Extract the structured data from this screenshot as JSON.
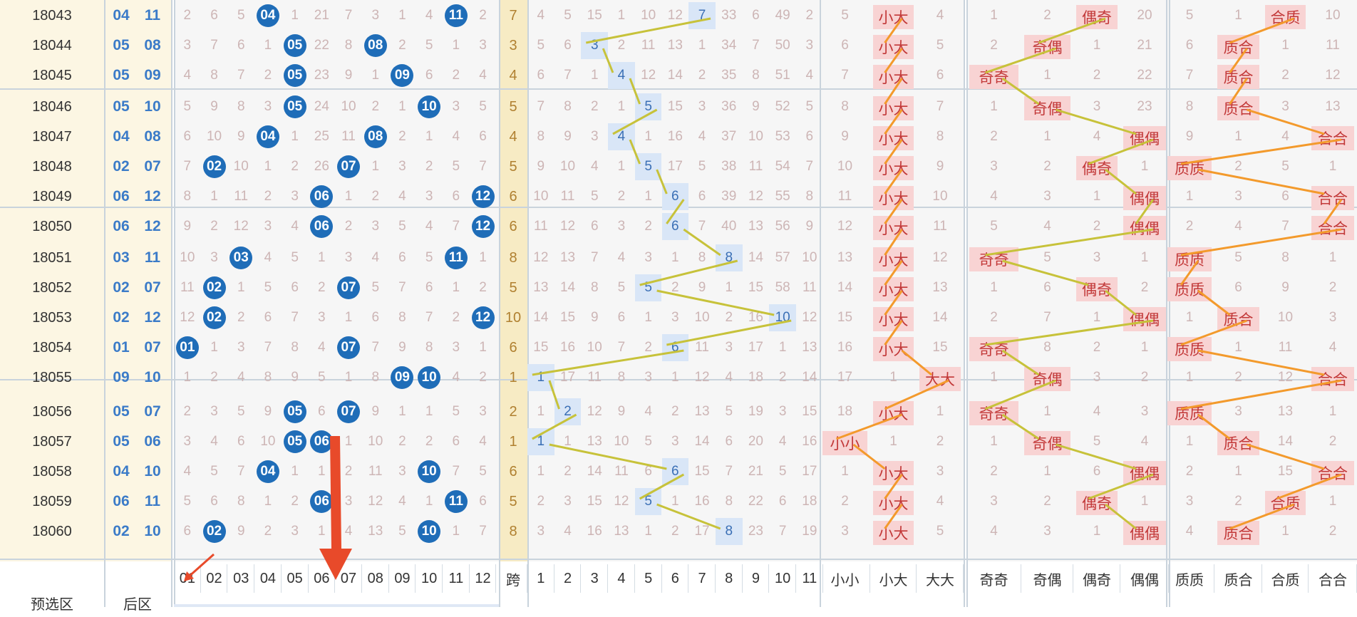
{
  "columns": {
    "front_numbers": [
      "01",
      "02",
      "03",
      "04",
      "05",
      "06",
      "07",
      "08",
      "09",
      "10",
      "11",
      "12"
    ],
    "span_label": "跨",
    "span_values": [
      "1",
      "2",
      "3",
      "4",
      "5",
      "6",
      "7",
      "8",
      "9",
      "10",
      "11"
    ],
    "size_patterns": [
      "小小",
      "小大",
      "大大"
    ],
    "parity_patterns": [
      "奇奇",
      "奇偶",
      "偶奇",
      "偶偶"
    ],
    "prime_patterns": [
      "质质",
      "质合",
      "合质",
      "合合"
    ]
  },
  "footer": {
    "zone_label": "预选区",
    "back_label": "后区"
  },
  "colors": {
    "ball": "#1f6db8",
    "span_highlight": "#f7ebc4",
    "hit_highlight": "#d9e6f7",
    "pattern_highlight": "#f8d3d3",
    "trend_yellow": "#c7c23a",
    "trend_orange": "#f39a2c",
    "arrow": "#e84a2a"
  },
  "rows": [
    {
      "issue": "18043",
      "back": [
        "04",
        "11"
      ],
      "front": [
        "2",
        "6",
        "5",
        "04",
        "1",
        "21",
        "7",
        "3",
        "1",
        "4",
        "11",
        "2"
      ],
      "span": "7",
      "spans": [
        "4",
        "5",
        "15",
        "1",
        "10",
        "12",
        "7",
        "33",
        "6",
        "49",
        "2"
      ],
      "size": [
        "5",
        "小大",
        "4"
      ],
      "parity": [
        "1",
        "2",
        "偶奇",
        "20"
      ],
      "prime": [
        "5",
        "1",
        "合质",
        "10"
      ]
    },
    {
      "issue": "18044",
      "back": [
        "05",
        "08"
      ],
      "front": [
        "3",
        "7",
        "6",
        "1",
        "05",
        "22",
        "8",
        "08",
        "2",
        "5",
        "1",
        "3"
      ],
      "span": "3",
      "spans": [
        "5",
        "6",
        "3",
        "2",
        "11",
        "13",
        "1",
        "34",
        "7",
        "50",
        "3"
      ],
      "size": [
        "6",
        "小大",
        "5"
      ],
      "parity": [
        "2",
        "奇偶",
        "1",
        "21"
      ],
      "prime": [
        "6",
        "质合",
        "1",
        "11"
      ]
    },
    {
      "issue": "18045",
      "back": [
        "05",
        "09"
      ],
      "front": [
        "4",
        "8",
        "7",
        "2",
        "05",
        "23",
        "9",
        "1",
        "09",
        "6",
        "2",
        "4"
      ],
      "span": "4",
      "spans": [
        "6",
        "7",
        "1",
        "4",
        "12",
        "14",
        "2",
        "35",
        "8",
        "51",
        "4"
      ],
      "size": [
        "7",
        "小大",
        "6"
      ],
      "parity": [
        "奇奇",
        "1",
        "2",
        "22"
      ],
      "prime": [
        "7",
        "质合",
        "2",
        "12"
      ]
    },
    {
      "issue": "18046",
      "back": [
        "05",
        "10"
      ],
      "front": [
        "5",
        "9",
        "8",
        "3",
        "05",
        "24",
        "10",
        "2",
        "1",
        "10",
        "3",
        "5"
      ],
      "span": "5",
      "spans": [
        "7",
        "8",
        "2",
        "1",
        "5",
        "15",
        "3",
        "36",
        "9",
        "52",
        "5"
      ],
      "size": [
        "8",
        "小大",
        "7"
      ],
      "parity": [
        "1",
        "奇偶",
        "3",
        "23"
      ],
      "prime": [
        "8",
        "质合",
        "3",
        "13"
      ]
    },
    {
      "issue": "18047",
      "back": [
        "04",
        "08"
      ],
      "front": [
        "6",
        "10",
        "9",
        "04",
        "1",
        "25",
        "11",
        "08",
        "2",
        "1",
        "4",
        "6"
      ],
      "span": "4",
      "spans": [
        "8",
        "9",
        "3",
        "4",
        "1",
        "16",
        "4",
        "37",
        "10",
        "53",
        "6"
      ],
      "size": [
        "9",
        "小大",
        "8"
      ],
      "parity": [
        "2",
        "1",
        "4",
        "偶偶"
      ],
      "prime": [
        "9",
        "1",
        "4",
        "合合"
      ]
    },
    {
      "issue": "18048",
      "back": [
        "02",
        "07"
      ],
      "front": [
        "7",
        "02",
        "10",
        "1",
        "2",
        "26",
        "07",
        "1",
        "3",
        "2",
        "5",
        "7"
      ],
      "span": "5",
      "spans": [
        "9",
        "10",
        "4",
        "1",
        "5",
        "17",
        "5",
        "38",
        "11",
        "54",
        "7"
      ],
      "size": [
        "10",
        "小大",
        "9"
      ],
      "parity": [
        "3",
        "2",
        "偶奇",
        "1"
      ],
      "prime": [
        "质质",
        "2",
        "5",
        "1"
      ]
    },
    {
      "issue": "18049",
      "back": [
        "06",
        "12"
      ],
      "front": [
        "8",
        "1",
        "11",
        "2",
        "3",
        "06",
        "1",
        "2",
        "4",
        "3",
        "6",
        "12"
      ],
      "span": "6",
      "spans": [
        "10",
        "11",
        "5",
        "2",
        "1",
        "6",
        "6",
        "39",
        "12",
        "55",
        "8"
      ],
      "size": [
        "11",
        "小大",
        "10"
      ],
      "parity": [
        "4",
        "3",
        "1",
        "偶偶"
      ],
      "prime": [
        "1",
        "3",
        "6",
        "合合"
      ]
    },
    {
      "issue": "18050",
      "back": [
        "06",
        "12"
      ],
      "front": [
        "9",
        "2",
        "12",
        "3",
        "4",
        "06",
        "2",
        "3",
        "5",
        "4",
        "7",
        "12"
      ],
      "span": "6",
      "spans": [
        "11",
        "12",
        "6",
        "3",
        "2",
        "6",
        "7",
        "40",
        "13",
        "56",
        "9"
      ],
      "size": [
        "12",
        "小大",
        "11"
      ],
      "parity": [
        "5",
        "4",
        "2",
        "偶偶"
      ],
      "prime": [
        "2",
        "4",
        "7",
        "合合"
      ]
    },
    {
      "issue": "18051",
      "back": [
        "03",
        "11"
      ],
      "front": [
        "10",
        "3",
        "03",
        "4",
        "5",
        "1",
        "3",
        "4",
        "6",
        "5",
        "11",
        "1"
      ],
      "span": "8",
      "spans": [
        "12",
        "13",
        "7",
        "4",
        "3",
        "1",
        "8",
        "8",
        "14",
        "57",
        "10"
      ],
      "size": [
        "13",
        "小大",
        "12"
      ],
      "parity": [
        "奇奇",
        "5",
        "3",
        "1"
      ],
      "prime": [
        "质质",
        "5",
        "8",
        "1"
      ]
    },
    {
      "issue": "18052",
      "back": [
        "02",
        "07"
      ],
      "front": [
        "11",
        "02",
        "1",
        "5",
        "6",
        "2",
        "07",
        "5",
        "7",
        "6",
        "1",
        "2"
      ],
      "span": "5",
      "spans": [
        "13",
        "14",
        "8",
        "5",
        "5",
        "2",
        "9",
        "1",
        "15",
        "58",
        "11"
      ],
      "size": [
        "14",
        "小大",
        "13"
      ],
      "parity": [
        "1",
        "6",
        "偶奇",
        "2"
      ],
      "prime": [
        "质质",
        "6",
        "9",
        "2"
      ]
    },
    {
      "issue": "18053",
      "back": [
        "02",
        "12"
      ],
      "front": [
        "12",
        "02",
        "2",
        "6",
        "7",
        "3",
        "1",
        "6",
        "8",
        "7",
        "2",
        "12"
      ],
      "span": "10",
      "spans": [
        "14",
        "15",
        "9",
        "6",
        "1",
        "3",
        "10",
        "2",
        "16",
        "10",
        "12"
      ],
      "size": [
        "15",
        "小大",
        "14"
      ],
      "parity": [
        "2",
        "7",
        "1",
        "偶偶"
      ],
      "prime": [
        "1",
        "质合",
        "10",
        "3"
      ]
    },
    {
      "issue": "18054",
      "back": [
        "01",
        "07"
      ],
      "front": [
        "01",
        "1",
        "3",
        "7",
        "8",
        "4",
        "07",
        "7",
        "9",
        "8",
        "3",
        "1"
      ],
      "span": "6",
      "spans": [
        "15",
        "16",
        "10",
        "7",
        "2",
        "6",
        "11",
        "3",
        "17",
        "1",
        "13"
      ],
      "size": [
        "16",
        "小大",
        "15"
      ],
      "parity": [
        "奇奇",
        "8",
        "2",
        "1"
      ],
      "prime": [
        "质质",
        "1",
        "11",
        "4"
      ]
    },
    {
      "issue": "18055",
      "back": [
        "09",
        "10"
      ],
      "front": [
        "1",
        "2",
        "4",
        "8",
        "9",
        "5",
        "1",
        "8",
        "09",
        "10",
        "4",
        "2"
      ],
      "span": "1",
      "spans": [
        "1",
        "17",
        "11",
        "8",
        "3",
        "1",
        "12",
        "4",
        "18",
        "2",
        "14"
      ],
      "size": [
        "17",
        "1",
        "大大"
      ],
      "parity": [
        "1",
        "奇偶",
        "3",
        "2"
      ],
      "prime": [
        "1",
        "2",
        "12",
        "合合"
      ]
    },
    {
      "issue": "18056",
      "back": [
        "05",
        "07"
      ],
      "front": [
        "2",
        "3",
        "5",
        "9",
        "05",
        "6",
        "07",
        "9",
        "1",
        "1",
        "5",
        "3"
      ],
      "span": "2",
      "spans": [
        "1",
        "2",
        "12",
        "9",
        "4",
        "2",
        "13",
        "5",
        "19",
        "3",
        "15"
      ],
      "size": [
        "18",
        "小大",
        "1"
      ],
      "parity": [
        "奇奇",
        "1",
        "4",
        "3"
      ],
      "prime": [
        "质质",
        "3",
        "13",
        "1"
      ]
    },
    {
      "issue": "18057",
      "back": [
        "05",
        "06"
      ],
      "front": [
        "3",
        "4",
        "6",
        "10",
        "05",
        "06",
        "1",
        "10",
        "2",
        "2",
        "6",
        "4"
      ],
      "span": "1",
      "spans": [
        "1",
        "1",
        "13",
        "10",
        "5",
        "3",
        "14",
        "6",
        "20",
        "4",
        "16"
      ],
      "size": [
        "小小",
        "1",
        "2"
      ],
      "parity": [
        "1",
        "奇偶",
        "5",
        "4"
      ],
      "prime": [
        "1",
        "质合",
        "14",
        "2"
      ]
    },
    {
      "issue": "18058",
      "back": [
        "04",
        "10"
      ],
      "front": [
        "4",
        "5",
        "7",
        "04",
        "1",
        "1",
        "2",
        "11",
        "3",
        "10",
        "7",
        "5"
      ],
      "span": "6",
      "spans": [
        "1",
        "2",
        "14",
        "11",
        "6",
        "6",
        "15",
        "7",
        "21",
        "5",
        "17"
      ],
      "size": [
        "1",
        "小大",
        "3"
      ],
      "parity": [
        "2",
        "1",
        "6",
        "偶偶"
      ],
      "prime": [
        "2",
        "1",
        "15",
        "合合"
      ]
    },
    {
      "issue": "18059",
      "back": [
        "06",
        "11"
      ],
      "front": [
        "5",
        "6",
        "8",
        "1",
        "2",
        "06",
        "3",
        "12",
        "4",
        "1",
        "11",
        "6"
      ],
      "span": "5",
      "spans": [
        "2",
        "3",
        "15",
        "12",
        "5",
        "1",
        "16",
        "8",
        "22",
        "6",
        "18"
      ],
      "size": [
        "2",
        "小大",
        "4"
      ],
      "parity": [
        "3",
        "2",
        "偶奇",
        "1"
      ],
      "prime": [
        "3",
        "2",
        "合质",
        "1"
      ]
    },
    {
      "issue": "18060",
      "back": [
        "02",
        "10"
      ],
      "front": [
        "6",
        "02",
        "9",
        "2",
        "3",
        "1",
        "4",
        "13",
        "5",
        "10",
        "1",
        "7"
      ],
      "span": "8",
      "spans": [
        "3",
        "4",
        "16",
        "13",
        "1",
        "2",
        "17",
        "8",
        "23",
        "7",
        "19"
      ],
      "size": [
        "3",
        "小大",
        "5"
      ],
      "parity": [
        "4",
        "3",
        "1",
        "偶偶"
      ],
      "prime": [
        "4",
        "质合",
        "1",
        "2"
      ]
    }
  ]
}
